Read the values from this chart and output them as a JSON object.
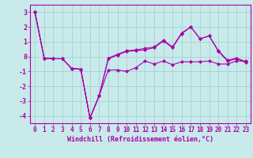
{
  "xlabel": "Windchill (Refroidissement éolien,°C)",
  "background_color": "#c8eaea",
  "grid_color": "#a0cccc",
  "line_color": "#aa00aa",
  "hours": [
    0,
    1,
    2,
    3,
    4,
    5,
    6,
    7,
    8,
    9,
    10,
    11,
    12,
    13,
    14,
    15,
    16,
    17,
    18,
    19,
    20,
    21,
    22,
    23
  ],
  "line1": [
    3.0,
    -0.1,
    -0.15,
    -0.15,
    -0.8,
    -0.85,
    -4.15,
    -2.65,
    -0.9,
    -0.9,
    -1.0,
    -0.75,
    -0.3,
    -0.5,
    -0.3,
    -0.55,
    -0.35,
    -0.35,
    -0.35,
    -0.3,
    -0.5,
    -0.5,
    -0.3,
    -0.3
  ],
  "line2": [
    3.0,
    -0.1,
    -0.15,
    -0.15,
    -0.8,
    -0.85,
    -4.15,
    -2.65,
    -0.15,
    0.1,
    0.35,
    0.4,
    0.45,
    0.6,
    1.05,
    0.6,
    1.55,
    2.0,
    1.2,
    1.4,
    0.35,
    -0.3,
    -0.15,
    -0.4
  ],
  "line3": [
    3.0,
    -0.1,
    -0.15,
    -0.15,
    -0.8,
    -0.85,
    -4.15,
    -2.65,
    -0.1,
    0.15,
    0.4,
    0.45,
    0.55,
    0.65,
    1.1,
    0.65,
    1.6,
    2.0,
    1.2,
    1.4,
    0.4,
    -0.25,
    -0.1,
    -0.35
  ],
  "ylim": [
    -4.5,
    3.5
  ],
  "yticks": [
    -4,
    -3,
    -2,
    -1,
    0,
    1,
    2,
    3
  ],
  "xticks": [
    0,
    1,
    2,
    3,
    4,
    5,
    6,
    7,
    8,
    9,
    10,
    11,
    12,
    13,
    14,
    15,
    16,
    17,
    18,
    19,
    20,
    21,
    22,
    23
  ],
  "tick_fontsize": 5.5,
  "xlabel_fontsize": 6.0
}
